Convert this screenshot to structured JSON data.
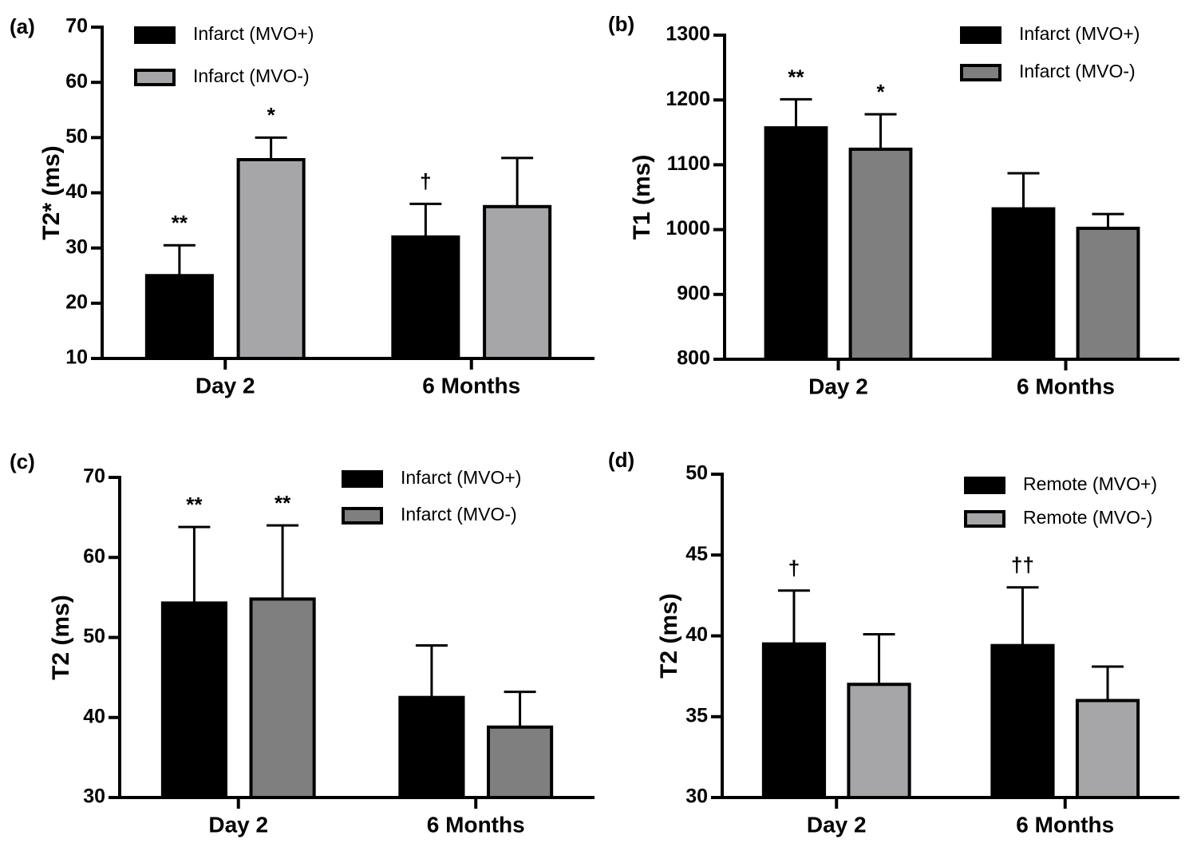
{
  "chart_data": [
    {
      "type": "bar",
      "panel_label": "(a)",
      "ylabel": "T2* (ms)",
      "categories": [
        "Day 2",
        "6 Months"
      ],
      "series": [
        {
          "name": "Infarct (MVO+)",
          "color": "#000000",
          "values": [
            25,
            32
          ],
          "errors": [
            5.5,
            6
          ],
          "annotations": [
            "**",
            "†"
          ]
        },
        {
          "name": "Infarct (MVO-)",
          "color": "#a6a6a8",
          "values": [
            46,
            37.5
          ],
          "errors": [
            4,
            8.8
          ],
          "annotations": [
            "*",
            null
          ]
        }
      ],
      "ylim": [
        10,
        70
      ],
      "yticks": [
        10,
        20,
        30,
        40,
        50,
        60,
        70
      ]
    },
    {
      "type": "bar",
      "panel_label": "(b)",
      "ylabel": "T1 (ms)",
      "categories": [
        "Day 2",
        "6 Months"
      ],
      "series": [
        {
          "name": "Infarct (MVO+)",
          "color": "#000000",
          "values": [
            1157,
            1032
          ],
          "errors": [
            44,
            55
          ],
          "annotations": [
            "**",
            null
          ]
        },
        {
          "name": "Infarct (MVO-)",
          "color": "#7f7f7f",
          "values": [
            1124,
            1002
          ],
          "errors": [
            54,
            22
          ],
          "annotations": [
            "*",
            null
          ]
        }
      ],
      "ylim": [
        800,
        1300
      ],
      "yticks": [
        800,
        900,
        1000,
        1100,
        1200,
        1300
      ]
    },
    {
      "type": "bar",
      "panel_label": "(c)",
      "ylabel": "T2 (ms)",
      "categories": [
        "Day 2",
        "6 Months"
      ],
      "series": [
        {
          "name": "Infarct (MVO+)",
          "color": "#000000",
          "values": [
            54.3,
            42.5
          ],
          "errors": [
            9.5,
            6.5
          ],
          "annotations": [
            "**",
            null
          ]
        },
        {
          "name": "Infarct (MVO-)",
          "color": "#7f7f7f",
          "values": [
            54.8,
            38.8
          ],
          "errors": [
            9.2,
            4.4
          ],
          "annotations": [
            "**",
            null
          ]
        }
      ],
      "ylim": [
        30,
        70
      ],
      "yticks": [
        30,
        40,
        50,
        60,
        70
      ]
    },
    {
      "type": "bar",
      "panel_label": "(d)",
      "ylabel": "T2 (ms)",
      "categories": [
        "Day 2",
        "6 Months"
      ],
      "series": [
        {
          "name": "Remote (MVO+)",
          "color": "#000000",
          "values": [
            39.5,
            39.4
          ],
          "errors": [
            3.3,
            3.6
          ],
          "annotations": [
            "†",
            "††"
          ]
        },
        {
          "name": "Remote (MVO-)",
          "color": "#a6a6a8",
          "values": [
            37,
            36
          ],
          "errors": [
            3.1,
            2.1
          ],
          "annotations": [
            null,
            null
          ]
        }
      ],
      "ylim": [
        30,
        50
      ],
      "yticks": [
        30,
        35,
        40,
        45,
        50
      ]
    }
  ]
}
